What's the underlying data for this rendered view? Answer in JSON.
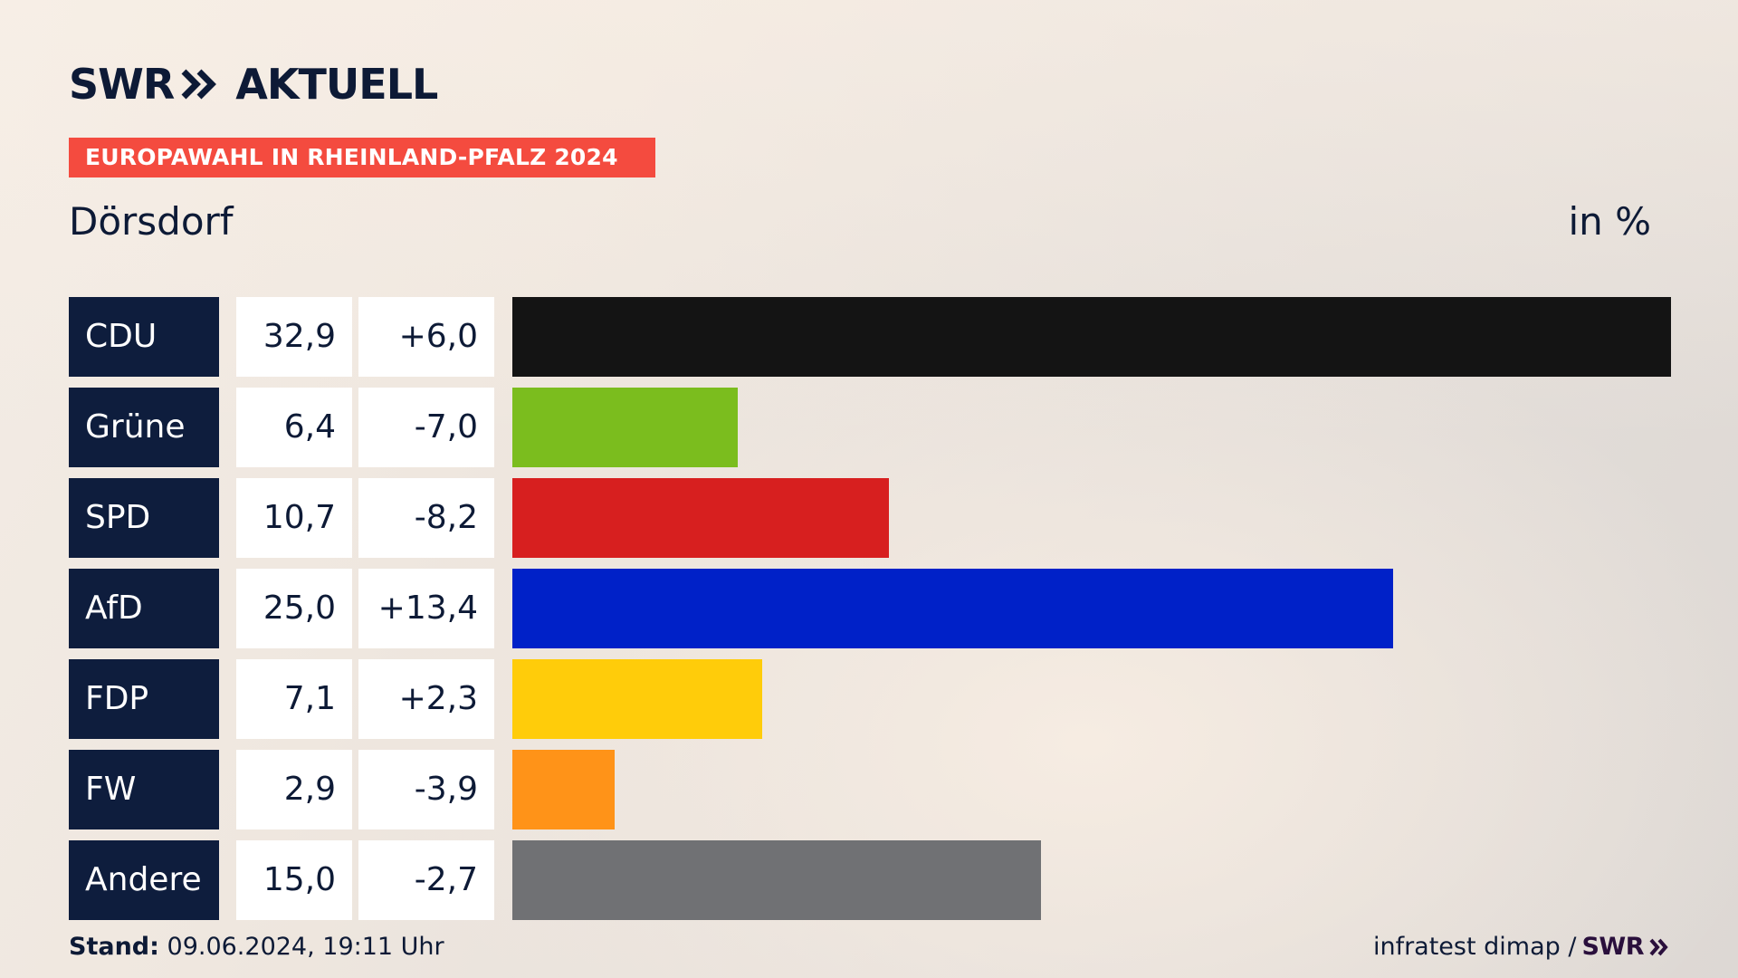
{
  "header": {
    "logo_left": "SWR",
    "logo_right": "AKTUELL",
    "title": "EUROPAWAHL IN RHEINLAND-PFALZ 2024",
    "place": "Dörsdorf",
    "unit": "in %"
  },
  "colors": {
    "title_bg": "#f44b3f",
    "party_bg": "#0e1d3d",
    "text": "#0d1a36"
  },
  "chart_data": {
    "type": "bar",
    "orientation": "horizontal",
    "title": "EUROPAWAHL IN RHEINLAND-PFALZ 2024",
    "subtitle": "Dörsdorf",
    "unit": "in %",
    "categories": [
      "CDU",
      "Grüne",
      "SPD",
      "AfD",
      "FDP",
      "FW",
      "Andere"
    ],
    "values": [
      32.9,
      6.4,
      10.7,
      25.0,
      7.1,
      2.9,
      15.0
    ],
    "value_labels": [
      "32,9",
      "6,4",
      "10,7",
      "25,0",
      "7,1",
      "2,9",
      "15,0"
    ],
    "diff_labels": [
      "+6,0",
      "-7,0",
      "-8,2",
      "+13,4",
      "+2,3",
      "-3,9",
      "-2,7"
    ],
    "colors": [
      "#141414",
      "#7bbd1e",
      "#d71f1f",
      "#0021c8",
      "#ffcc0a",
      "#ff9318",
      "#707174"
    ],
    "xlim": [
      0,
      32.9
    ]
  },
  "footer": {
    "stand_label": "Stand:",
    "stand_value": "09.06.2024, 19:11 Uhr",
    "source": "infratest dimap /",
    "source_logo": "SWR"
  }
}
